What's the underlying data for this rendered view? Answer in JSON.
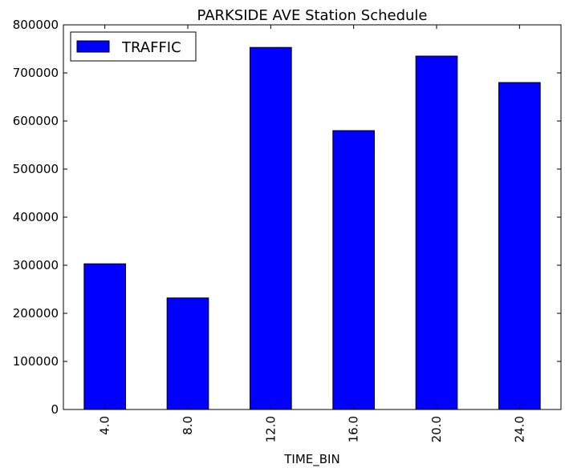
{
  "chart_data": {
    "type": "bar",
    "title": "PARKSIDE AVE Station Schedule",
    "xlabel": "TIME_BIN",
    "ylabel": "",
    "categories": [
      "4.0",
      "8.0",
      "12.0",
      "16.0",
      "20.0",
      "24.0"
    ],
    "series": [
      {
        "name": "TRAFFIC",
        "values": [
          303000,
          232000,
          753000,
          580000,
          735000,
          680000
        ]
      }
    ],
    "ylim": [
      0,
      800000
    ],
    "yticks": [
      0,
      100000,
      200000,
      300000,
      400000,
      500000,
      600000,
      700000,
      800000
    ],
    "ytick_labels": [
      "0",
      "100000",
      "200000",
      "300000",
      "400000",
      "500000",
      "600000",
      "700000",
      "800000"
    ],
    "grid": false,
    "legend_position": "top-left",
    "bar_color": "#0000ff",
    "edge_color": "#000000"
  }
}
